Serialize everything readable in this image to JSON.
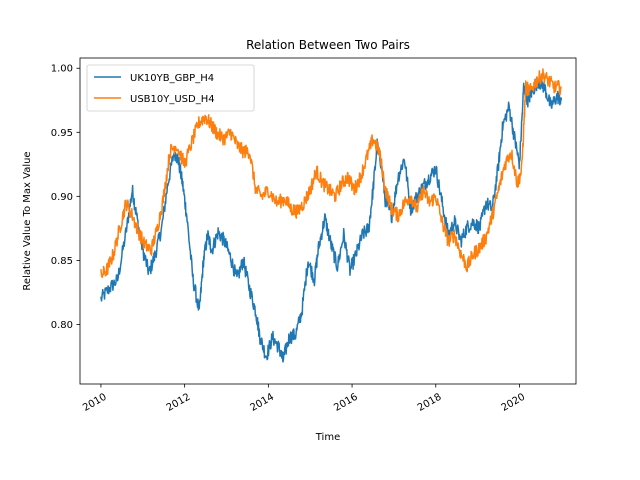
{
  "chart_data": {
    "type": "line",
    "title": "Relation Between Two Pairs",
    "xlabel": "Time",
    "ylabel": "Relative Value To Max Value",
    "xlim": [
      2009.5,
      2021.35
    ],
    "ylim": [
      0.7535,
      1.008
    ],
    "x_ticks": [
      2010,
      2012,
      2014,
      2016,
      2018,
      2020
    ],
    "x_tick_labels": [
      "2010",
      "2012",
      "2014",
      "2016",
      "2018",
      "2020"
    ],
    "y_ticks": [
      0.8,
      0.85,
      0.9,
      0.95,
      1.0
    ],
    "y_tick_labels": [
      "0.80",
      "0.85",
      "0.90",
      "0.95",
      "1.00"
    ],
    "grid": false,
    "legend_position": "top-left",
    "series": [
      {
        "name": "UK10YB_GBP_H4",
        "color": "#1f77b4",
        "x": [
          2010.0,
          2010.2,
          2010.4,
          2010.6,
          2010.75,
          2010.85,
          2011.0,
          2011.15,
          2011.3,
          2011.45,
          2011.6,
          2011.75,
          2011.85,
          2011.95,
          2012.05,
          2012.2,
          2012.35,
          2012.45,
          2012.55,
          2012.65,
          2012.8,
          2012.95,
          2013.1,
          2013.25,
          2013.4,
          2013.55,
          2013.7,
          2013.8,
          2013.95,
          2014.1,
          2014.25,
          2014.35,
          2014.5,
          2014.65,
          2014.8,
          2014.95,
          2015.1,
          2015.2,
          2015.35,
          2015.5,
          2015.65,
          2015.8,
          2015.95,
          2016.1,
          2016.25,
          2016.4,
          2016.5,
          2016.6,
          2016.7,
          2016.8,
          2016.95,
          2017.1,
          2017.25,
          2017.4,
          2017.55,
          2017.7,
          2017.85,
          2018.0,
          2018.15,
          2018.3,
          2018.45,
          2018.6,
          2018.75,
          2018.9,
          2019.05,
          2019.2,
          2019.35,
          2019.5,
          2019.6,
          2019.75,
          2019.9,
          2020.0,
          2020.1,
          2020.2,
          2020.3,
          2020.45,
          2020.6,
          2020.75,
          2020.9,
          2021.0
        ],
        "values": [
          0.82,
          0.828,
          0.835,
          0.872,
          0.905,
          0.885,
          0.858,
          0.84,
          0.855,
          0.875,
          0.91,
          0.935,
          0.928,
          0.91,
          0.885,
          0.835,
          0.81,
          0.85,
          0.87,
          0.858,
          0.872,
          0.865,
          0.852,
          0.835,
          0.85,
          0.828,
          0.81,
          0.79,
          0.775,
          0.79,
          0.782,
          0.772,
          0.79,
          0.792,
          0.81,
          0.85,
          0.835,
          0.86,
          0.883,
          0.862,
          0.845,
          0.87,
          0.842,
          0.855,
          0.87,
          0.875,
          0.905,
          0.94,
          0.925,
          0.895,
          0.885,
          0.915,
          0.93,
          0.89,
          0.9,
          0.908,
          0.915,
          0.922,
          0.895,
          0.87,
          0.88,
          0.865,
          0.876,
          0.88,
          0.875,
          0.895,
          0.89,
          0.925,
          0.955,
          0.97,
          0.942,
          0.925,
          0.985,
          0.975,
          0.982,
          0.99,
          0.985,
          0.97,
          0.978,
          0.975
        ]
      },
      {
        "name": "USB10Y_USD_H4",
        "color": "#ff7f0e",
        "x": [
          2010.0,
          2010.15,
          2010.3,
          2010.45,
          2010.6,
          2010.75,
          2010.9,
          2011.05,
          2011.2,
          2011.35,
          2011.5,
          2011.65,
          2011.8,
          2012.0,
          2012.2,
          2012.35,
          2012.5,
          2012.65,
          2012.8,
          2012.95,
          2013.1,
          2013.25,
          2013.4,
          2013.55,
          2013.7,
          2013.85,
          2014.0,
          2014.2,
          2014.4,
          2014.55,
          2014.7,
          2014.85,
          2015.0,
          2015.15,
          2015.3,
          2015.45,
          2015.6,
          2015.75,
          2015.9,
          2016.05,
          2016.2,
          2016.35,
          2016.5,
          2016.65,
          2016.8,
          2016.95,
          2017.1,
          2017.25,
          2017.4,
          2017.55,
          2017.7,
          2017.85,
          2018.0,
          2018.15,
          2018.3,
          2018.45,
          2018.6,
          2018.75,
          2018.9,
          2019.05,
          2019.2,
          2019.35,
          2019.5,
          2019.65,
          2019.8,
          2019.95,
          2020.05,
          2020.15,
          2020.25,
          2020.4,
          2020.55,
          2020.7,
          2020.85,
          2021.0
        ],
        "values": [
          0.838,
          0.843,
          0.855,
          0.875,
          0.895,
          0.885,
          0.872,
          0.862,
          0.858,
          0.875,
          0.9,
          0.935,
          0.94,
          0.925,
          0.945,
          0.958,
          0.962,
          0.955,
          0.948,
          0.945,
          0.95,
          0.94,
          0.935,
          0.935,
          0.905,
          0.9,
          0.905,
          0.895,
          0.898,
          0.89,
          0.888,
          0.895,
          0.905,
          0.92,
          0.91,
          0.905,
          0.9,
          0.91,
          0.915,
          0.905,
          0.915,
          0.93,
          0.945,
          0.935,
          0.905,
          0.89,
          0.885,
          0.895,
          0.9,
          0.89,
          0.905,
          0.895,
          0.9,
          0.88,
          0.865,
          0.87,
          0.855,
          0.845,
          0.855,
          0.86,
          0.868,
          0.885,
          0.905,
          0.925,
          0.935,
          0.91,
          0.92,
          0.985,
          0.982,
          0.99,
          0.995,
          0.99,
          0.985,
          0.985
        ]
      }
    ]
  }
}
